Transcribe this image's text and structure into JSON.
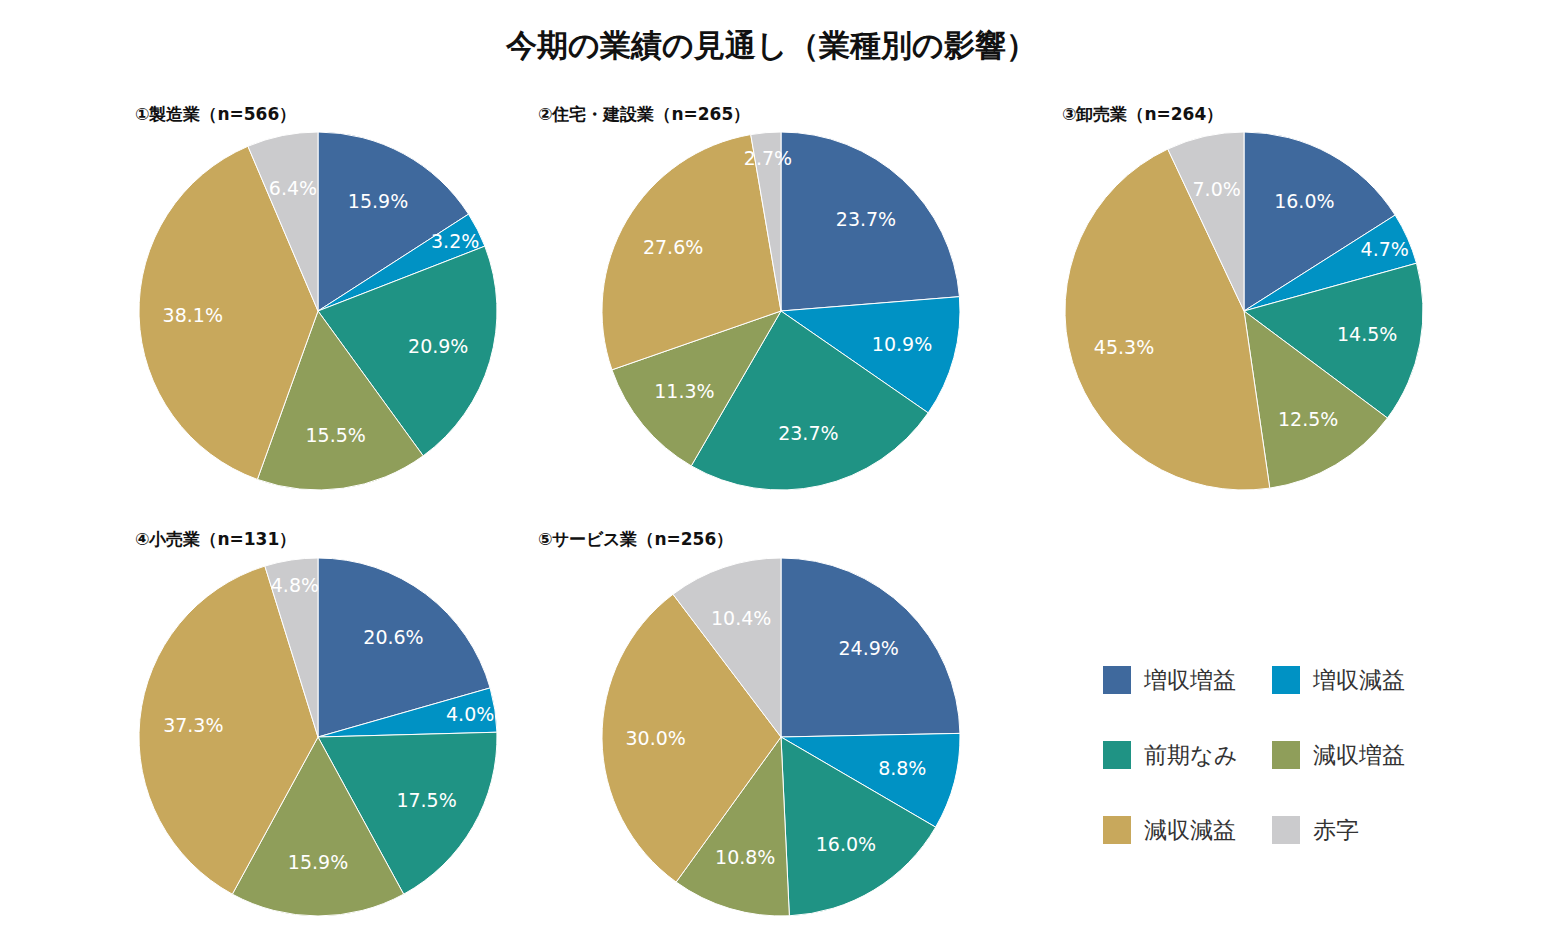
{
  "title": "今期の業績の見通し（業種別の影響）",
  "chart_data": [
    {
      "type": "pie",
      "title": "①製造業（n=566）",
      "categories": [
        "増収増益",
        "増収減益",
        "前期なみ",
        "減収増益",
        "減収減益",
        "赤字"
      ],
      "values": [
        15.9,
        3.2,
        20.9,
        15.5,
        38.1,
        6.4
      ],
      "value_labels": [
        "15.9%",
        "3.2%",
        "20.9%",
        "15.5%",
        "38.1%",
        "6.4%"
      ],
      "colors": [
        "#3f699d",
        "#0092c4",
        "#1f9384",
        "#8f9e5a",
        "#c8a85c",
        "#cbcbcd"
      ],
      "data_labels": true
    },
    {
      "type": "pie",
      "title": "②住宅・建設業（n=265）",
      "categories": [
        "増収増益",
        "増収減益",
        "前期なみ",
        "減収増益",
        "減収減益",
        "赤字"
      ],
      "values": [
        23.7,
        10.9,
        23.7,
        11.3,
        27.6,
        2.7
      ],
      "value_labels": [
        "23.7%",
        "10.9%",
        "23.7%",
        "11.3%",
        "27.6%",
        "2.7%"
      ],
      "colors": [
        "#3f699d",
        "#0092c4",
        "#1f9384",
        "#8f9e5a",
        "#c8a85c",
        "#cbcbcd"
      ],
      "data_labels": true
    },
    {
      "type": "pie",
      "title": "③卸売業（n=264）",
      "categories": [
        "増収増益",
        "増収減益",
        "前期なみ",
        "減収増益",
        "減収減益",
        "赤字"
      ],
      "values": [
        16.0,
        4.7,
        14.5,
        12.5,
        45.3,
        7.0
      ],
      "value_labels": [
        "16.0%",
        "4.7%",
        "14.5%",
        "12.5%",
        "45.3%",
        "7.0%"
      ],
      "colors": [
        "#3f699d",
        "#0092c4",
        "#1f9384",
        "#8f9e5a",
        "#c8a85c",
        "#cbcbcd"
      ],
      "data_labels": true
    },
    {
      "type": "pie",
      "title": "④小売業（n=131）",
      "categories": [
        "増収増益",
        "増収減益",
        "前期なみ",
        "減収増益",
        "減収減益",
        "赤字"
      ],
      "values": [
        20.6,
        4.0,
        17.5,
        15.9,
        37.3,
        4.8
      ],
      "value_labels": [
        "20.6%",
        "4.0%",
        "17.5%",
        "15.9%",
        "37.3%",
        "4.8%"
      ],
      "colors": [
        "#3f699d",
        "#0092c4",
        "#1f9384",
        "#8f9e5a",
        "#c8a85c",
        "#cbcbcd"
      ],
      "data_labels": true
    },
    {
      "type": "pie",
      "title": "⑤サービス業（n=256）",
      "categories": [
        "増収増益",
        "増収減益",
        "前期なみ",
        "減収増益",
        "減収減益",
        "赤字"
      ],
      "values": [
        24.9,
        8.8,
        16.0,
        10.8,
        30.0,
        10.4
      ],
      "value_labels": [
        "24.9%",
        "8.8%",
        "16.0%",
        "10.8%",
        "30.0%",
        "10.4%"
      ],
      "colors": [
        "#3f699d",
        "#0092c4",
        "#1f9384",
        "#8f9e5a",
        "#c8a85c",
        "#cbcbcd"
      ],
      "data_labels": true
    }
  ]
}
